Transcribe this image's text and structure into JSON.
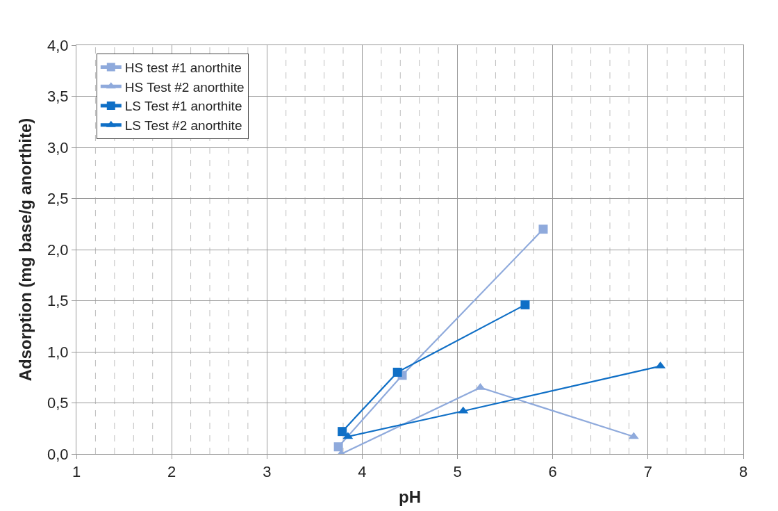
{
  "chart_data": {
    "type": "line",
    "xlabel": "pH",
    "ylabel": "Adsorption (mg base/g anorthite)",
    "series": [
      {
        "name": "HS test #1 anorthite",
        "color": "#8faadc",
        "marker": "square",
        "x": [
          3.75,
          4.42,
          5.9
        ],
        "values": [
          0.07,
          0.77,
          2.2
        ]
      },
      {
        "name": "HS Test #2 anorthite",
        "color": "#8faadc",
        "marker": "triangle",
        "x": [
          3.78,
          5.24,
          6.85
        ],
        "values": [
          0.0,
          0.65,
          0.17
        ]
      },
      {
        "name": "LS Test #1 anorthite",
        "color": "#0f6fc6",
        "marker": "square",
        "x": [
          3.79,
          4.37,
          5.71
        ],
        "values": [
          0.22,
          0.8,
          1.46
        ]
      },
      {
        "name": "LS Test #2 anorthite",
        "color": "#0f6fc6",
        "marker": "triangle",
        "x": [
          3.85,
          5.06,
          7.13
        ],
        "values": [
          0.17,
          0.42,
          0.86
        ]
      }
    ],
    "xlim": [
      1,
      8
    ],
    "xticks": [
      1,
      2,
      3,
      4,
      5,
      6,
      7,
      8
    ],
    "ylim": [
      0,
      4
    ],
    "yticks": [
      {
        "value": 0,
        "label": "0,0"
      },
      {
        "value": 0.5,
        "label": "0,5"
      },
      {
        "value": 1,
        "label": "1,0"
      },
      {
        "value": 1.5,
        "label": "1,5"
      },
      {
        "value": 2,
        "label": "2,0"
      },
      {
        "value": 2.5,
        "label": "2,5"
      },
      {
        "value": 3,
        "label": "3,0"
      },
      {
        "value": 3.5,
        "label": "3,5"
      },
      {
        "value": 4,
        "label": "4,0"
      }
    ],
    "grid": true,
    "legend": "top left",
    "line_style": "solid"
  }
}
